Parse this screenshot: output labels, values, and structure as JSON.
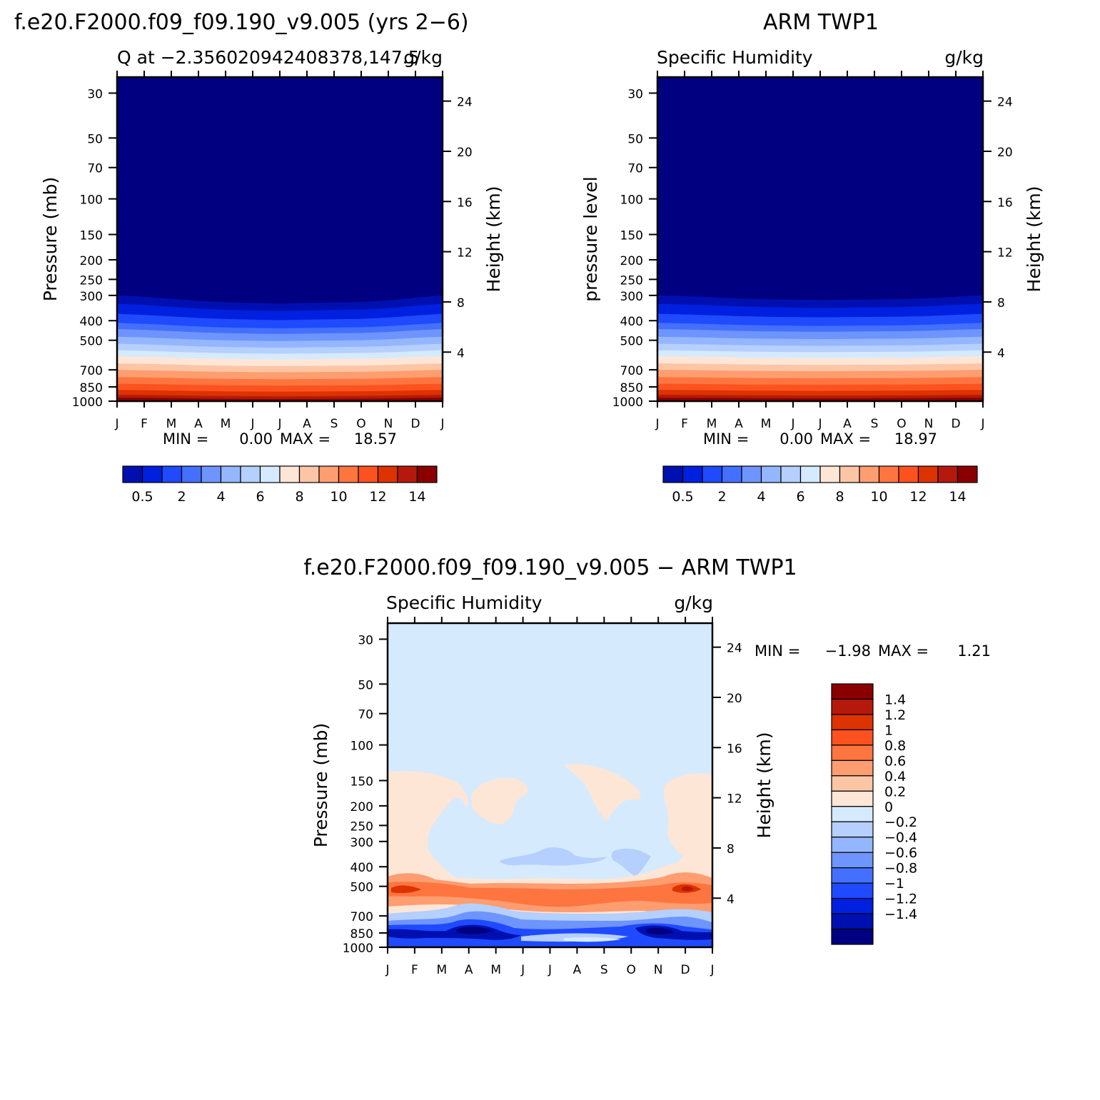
{
  "figure": {
    "top_left_title": "f.e20.F2000.f09_f09.190_v9.005 (yrs 2−6)",
    "top_right_title": "ARM TWP1",
    "bottom_title": "f.e20.F2000.f09_f09.190_v9.005 − ARM TWP1"
  },
  "chart_data": [
    {
      "id": "model",
      "type": "heatmap",
      "title_left": "Q at −2.356020942408378,147.5",
      "title_right": "g/kg",
      "ylabel": "Pressure (mb)",
      "y2label": "Height (km)",
      "months": [
        "J",
        "F",
        "M",
        "A",
        "M",
        "J",
        "J",
        "A",
        "S",
        "O",
        "N",
        "D",
        "J"
      ],
      "pressure_ticks": [
        "30",
        "50",
        "70",
        "100",
        "150",
        "200",
        "250",
        "300",
        "400",
        "500",
        "700",
        "850",
        "1000"
      ],
      "height_ticks": [
        "24",
        "20",
        "16",
        "12",
        "8",
        "4"
      ],
      "min_label": "MIN =",
      "min_value": "0.00",
      "max_label": "MAX =",
      "max_value": "18.57",
      "colorbar_labels": [
        "0.5",
        "2",
        "4",
        "6",
        "8",
        "10",
        "12",
        "14"
      ],
      "pressure_levels": [
        1000,
        850,
        700,
        500,
        400,
        300
      ],
      "band_tops_mb": [
        960,
        930,
        880,
        820,
        760,
        700,
        650,
        600,
        560,
        520,
        480,
        440,
        410,
        370,
        330,
        300
      ],
      "seasonal_shift": [
        0,
        5,
        12,
        20,
        25,
        28,
        30,
        28,
        26,
        24,
        18,
        8,
        0
      ],
      "colors": [
        "#8a0000",
        "#b5190b",
        "#dd3300",
        "#fb5220",
        "#fe7540",
        "#fe9d70",
        "#fcc6a6",
        "#fee6d6",
        "#d6eafe",
        "#b5cffe",
        "#94b6fe",
        "#6e94fe",
        "#4370fe",
        "#1f4afe",
        "#0020e0",
        "#0010b0",
        "#000080"
      ]
    },
    {
      "id": "obs",
      "type": "heatmap",
      "title_left": "Specific Humidity",
      "title_right": "g/kg",
      "ylabel": "pressure level",
      "y2label": "Height (km)",
      "months": [
        "J",
        "F",
        "M",
        "A",
        "M",
        "J",
        "J",
        "A",
        "S",
        "O",
        "N",
        "D",
        "J"
      ],
      "pressure_ticks": [
        "30",
        "50",
        "70",
        "100",
        "150",
        "200",
        "250",
        "300",
        "400",
        "500",
        "700",
        "850",
        "1000"
      ],
      "height_ticks": [
        "24",
        "20",
        "16",
        "12",
        "8",
        "4"
      ],
      "min_label": "MIN =",
      "min_value": "0.00",
      "max_label": "MAX =",
      "max_value": "18.97",
      "colorbar_labels": [
        "0.5",
        "2",
        "4",
        "6",
        "8",
        "10",
        "12",
        "14"
      ]
    },
    {
      "id": "diff",
      "type": "heatmap",
      "title_left": "Specific Humidity",
      "title_right": "g/kg",
      "ylabel": "Pressure (mb)",
      "y2label": "Height (km)",
      "months": [
        "J",
        "F",
        "M",
        "A",
        "M",
        "J",
        "J",
        "A",
        "S",
        "O",
        "N",
        "D",
        "J"
      ],
      "pressure_ticks": [
        "30",
        "50",
        "70",
        "100",
        "150",
        "200",
        "250",
        "300",
        "400",
        "500",
        "700",
        "850",
        "1000"
      ],
      "height_ticks": [
        "24",
        "20",
        "16",
        "12",
        "8",
        "4"
      ],
      "min_label": "MIN =",
      "min_value": "−1.98",
      "max_label": "MAX =",
      "max_value": "1.21",
      "colorbar_labels": [
        "1.4",
        "1.2",
        "1",
        "0.8",
        "0.6",
        "0.4",
        "0.2",
        "0",
        "−0.2",
        "−0.4",
        "−0.6",
        "−0.8",
        "−1",
        "−1.2",
        "−1.4"
      ],
      "colorbar_colors": [
        "#8a0000",
        "#b5190b",
        "#dd3300",
        "#fb5220",
        "#fe7540",
        "#fe9d70",
        "#fcc6a6",
        "#fee6d6",
        "#d6eafe",
        "#b5cffe",
        "#94b6fe",
        "#6e94fe",
        "#4370fe",
        "#1f4afe",
        "#0020e0",
        "#0010b0",
        "#000080"
      ]
    }
  ]
}
